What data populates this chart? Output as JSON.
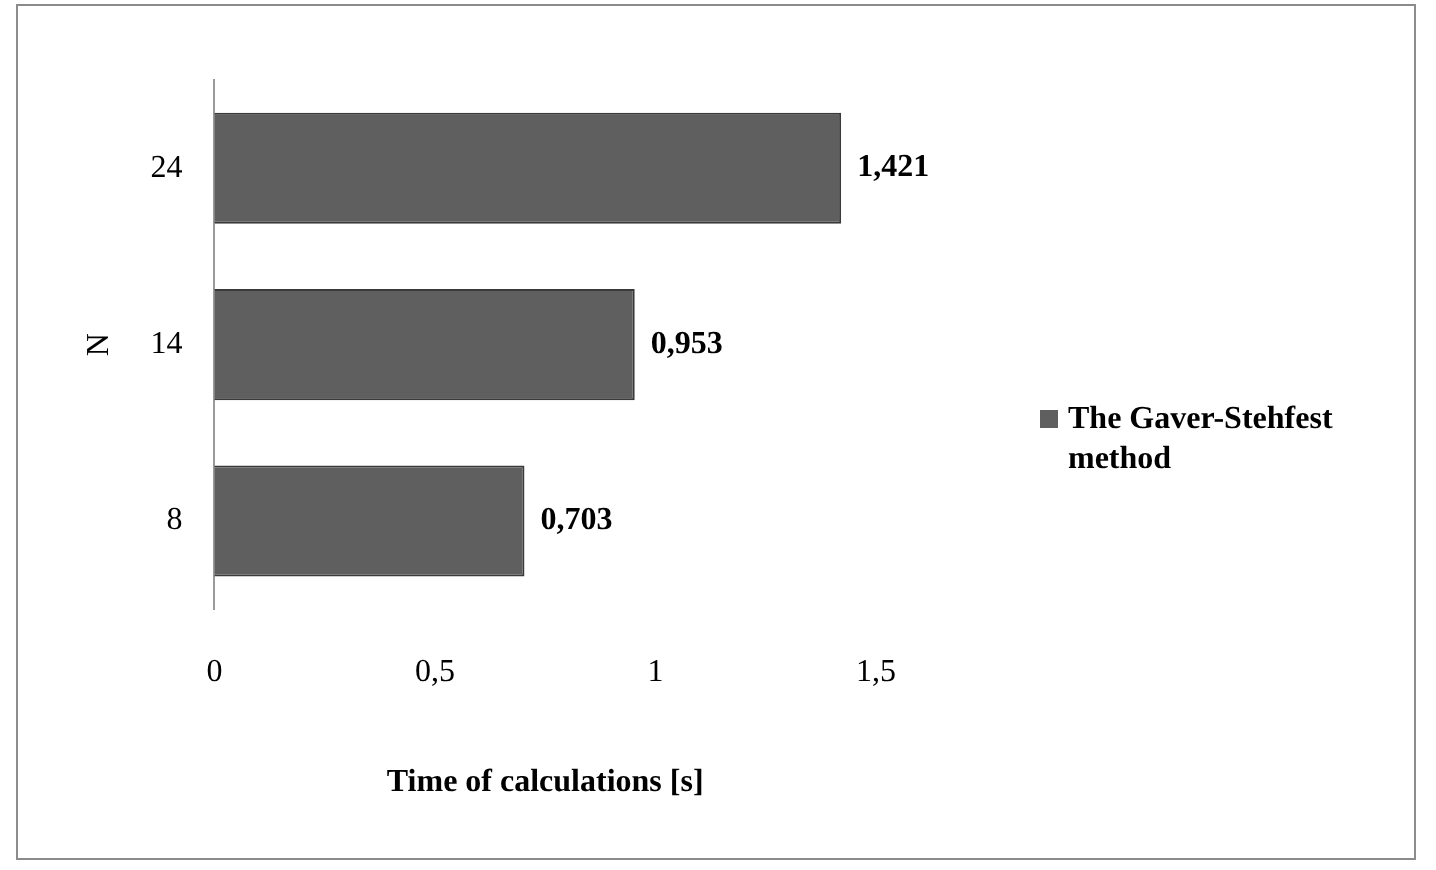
{
  "chart_data": {
    "type": "bar",
    "orientation": "horizontal",
    "categories": [
      "24",
      "14",
      "8"
    ],
    "series": [
      {
        "name": "The Gaver-Stehfest method",
        "color": "#5f5f5f",
        "values": [
          1.421,
          0.953,
          0.703
        ],
        "value_labels": [
          "1,421",
          "0,953",
          "0,703"
        ]
      }
    ],
    "xlabel": "Time of calculations [s]",
    "ylabel": "N",
    "xlim": [
      0,
      1.5
    ],
    "xticks": [
      0,
      {
        "value": 0.5,
        "label": "0,5"
      },
      1,
      {
        "value": 1.5,
        "label": "1,5"
      }
    ],
    "grid": false,
    "legend": "right"
  }
}
